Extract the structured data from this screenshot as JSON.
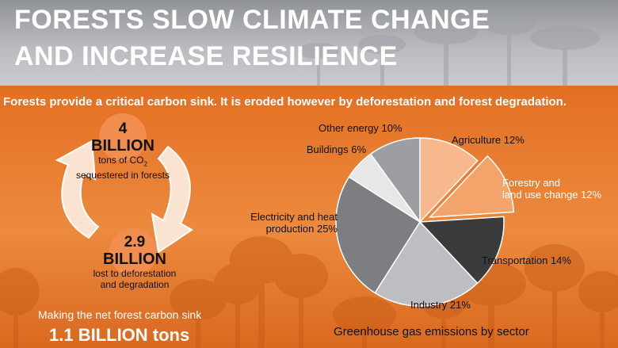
{
  "header": {
    "title_line1": "FORESTS SLOW CLIMATE CHANGE",
    "title_line2": "AND INCREASE RESILIENCE"
  },
  "subtitle": "Forests provide a critical carbon sink. It is eroded however by deforestation and forest degradation.",
  "sequestered": {
    "number": "4",
    "unit": "BILLION",
    "desc_line1": "tons of CO",
    "desc_sub": "2",
    "desc_line2": "sequestered in forests"
  },
  "lost": {
    "number": "2.9",
    "unit": "BILLION",
    "desc_line1": "lost to deforestation",
    "desc_line2": "and degradation"
  },
  "net": {
    "text": "Making the net forest carbon sink",
    "value": "1.1 BILLION tons"
  },
  "colors": {
    "header_bg": "#a9abaf",
    "orange": "#e8762a",
    "arrow_fill": "#fbe3d2"
  },
  "chart_data": {
    "type": "pie",
    "title": "Greenhouse gas emissions by sector",
    "slices": [
      {
        "label": "Agriculture 12%",
        "name": "Agriculture",
        "value": 12,
        "color": "#f6b88c",
        "exploded": false
      },
      {
        "label": "Forestry and\nland use change 12%",
        "name": "Forestry and land use change",
        "value": 12,
        "color": "#f3a46a",
        "exploded": true
      },
      {
        "label": "Transportation 14%",
        "name": "Transportation",
        "value": 14,
        "color": "#3a3b3d",
        "exploded": false
      },
      {
        "label": "Industry 21%",
        "name": "Industry",
        "value": 21,
        "color": "#bcbec1",
        "exploded": false
      },
      {
        "label": "Electricity and heat\nproduction 25%",
        "name": "Electricity and heat production",
        "value": 25,
        "color": "#7c7e82",
        "exploded": false
      },
      {
        "label": "Buildings 6%",
        "name": "Buildings",
        "value": 6,
        "color": "#e7e7e8",
        "exploded": false
      },
      {
        "label": "Other energy 10%",
        "name": "Other energy",
        "value": 10,
        "color": "#9c9ea1",
        "exploded": false
      }
    ]
  }
}
